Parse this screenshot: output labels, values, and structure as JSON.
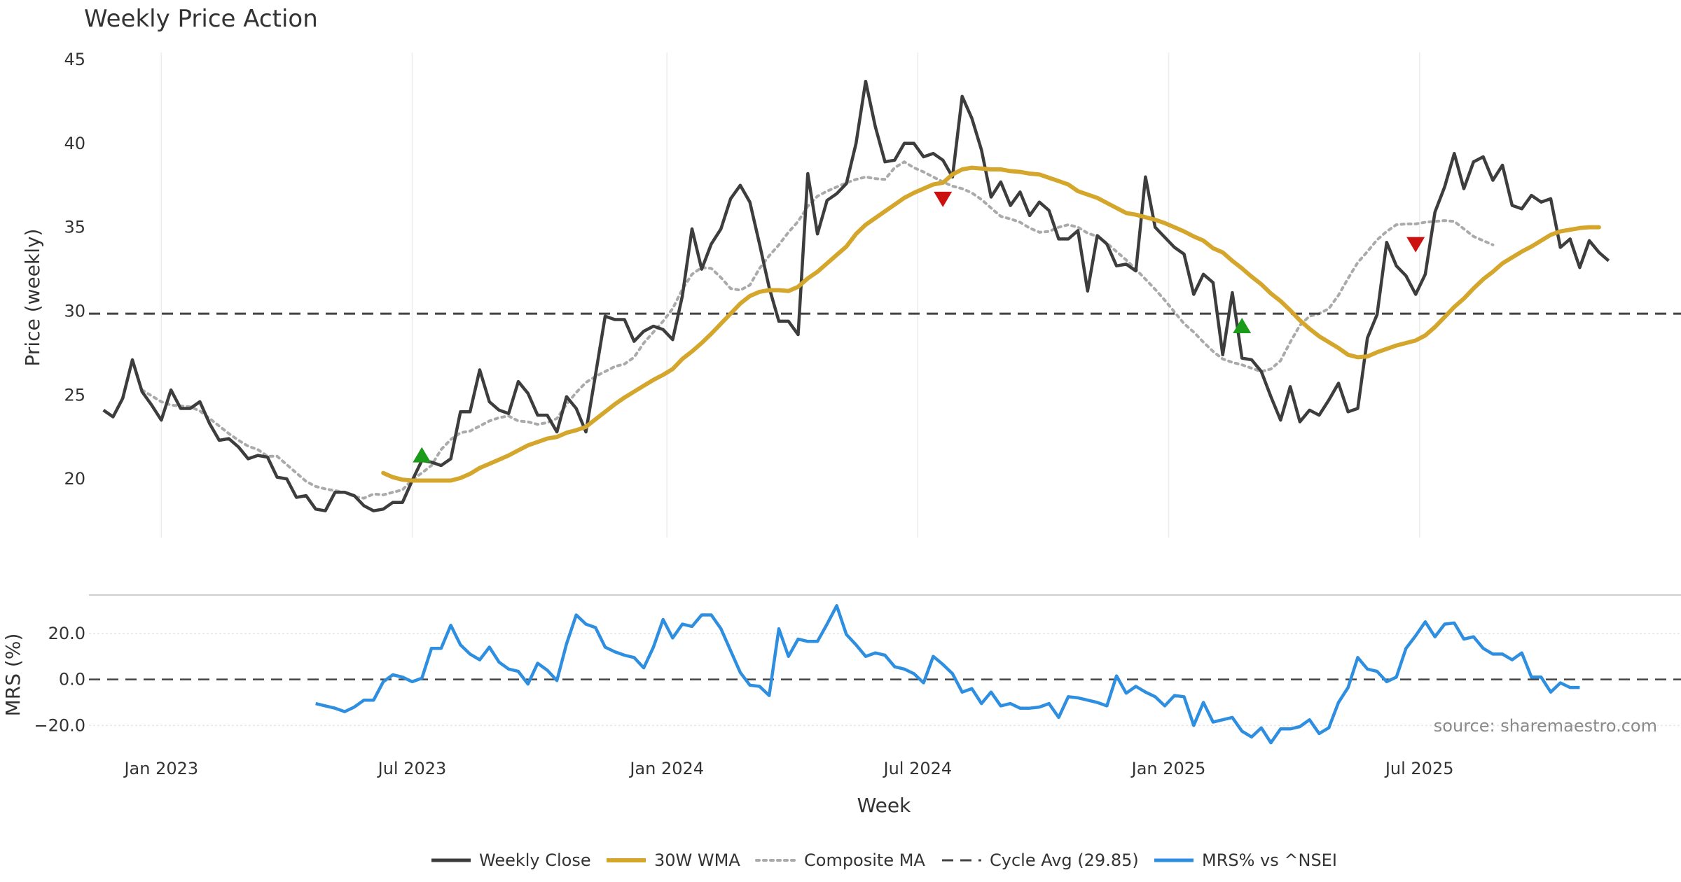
{
  "chart_data": {
    "type": "line",
    "title": "Weekly Price Action",
    "xlabel": "Week",
    "source_label": "source: sharemaestro.com",
    "x_ticks": [
      "Jan 2023",
      "Jul 2023",
      "Jan 2024",
      "Jul 2024",
      "Jan 2025",
      "Jul 2025"
    ],
    "x_tick_weeks": [
      6.0,
      32.0,
      58.4,
      84.4,
      110.4,
      136.4
    ],
    "x_range": [
      -1.5,
      163.5
    ],
    "price_panel": {
      "ylabel": "Price (weekly)",
      "ylim": [
        16.5,
        45
      ],
      "y_ticks": [
        20,
        25,
        30,
        35,
        40,
        45
      ],
      "cycle_avg": 29.85
    },
    "mrs_panel": {
      "ylabel": "MRS (%)",
      "ylim": [
        -29,
        33
      ],
      "y_ticks": [
        -20,
        0,
        20
      ],
      "y_tick_labels": [
        "−20.0",
        "0.0",
        "20.0"
      ]
    },
    "series": [
      {
        "name": "Weekly Close",
        "color": "#3d3d3d",
        "values": [
          24.1,
          23.7,
          24.8,
          27.1,
          25.2,
          24.4,
          23.5,
          25.3,
          24.2,
          24.2,
          24.6,
          23.3,
          22.3,
          22.4,
          21.9,
          21.2,
          21.4,
          21.3,
          20.1,
          20.0,
          18.9,
          19.0,
          18.2,
          18.1,
          19.2,
          19.2,
          19.0,
          18.4,
          18.1,
          18.2,
          18.6,
          18.6,
          19.9,
          21.1,
          21.0,
          20.8,
          21.2,
          24.0,
          24.0,
          26.5,
          24.6,
          24.1,
          23.9,
          25.8,
          25.1,
          23.8,
          23.8,
          22.8,
          24.9,
          24.2,
          22.8,
          26.2,
          29.7,
          29.5,
          29.5,
          28.2,
          28.8,
          29.1,
          28.9,
          28.3,
          30.9,
          34.9,
          32.5,
          34.0,
          34.9,
          36.7,
          37.5,
          36.5,
          34.0,
          31.4,
          29.4,
          29.4,
          28.6,
          38.2,
          34.6,
          36.6,
          37.0,
          37.6,
          40.0,
          43.7,
          41.0,
          38.9,
          39.0,
          40.0,
          40.0,
          39.2,
          39.4,
          39.0,
          38.0,
          42.8,
          41.5,
          39.6,
          36.8,
          37.7,
          36.3,
          37.1,
          35.7,
          36.5,
          36.0,
          34.3,
          34.3,
          34.8,
          31.2,
          34.5,
          34.0,
          32.7,
          32.8,
          32.4,
          38.0,
          35.0,
          34.4,
          33.8,
          33.4,
          31.0,
          32.2,
          31.7,
          27.4,
          31.1,
          27.2,
          27.1,
          26.4,
          24.9,
          23.5,
          25.5,
          23.4,
          24.1,
          23.8,
          24.7,
          25.7,
          24.0,
          24.2,
          28.4,
          29.8,
          34.1,
          32.7,
          32.1,
          31.0,
          32.2,
          35.9,
          37.4,
          39.4,
          37.3,
          38.9,
          39.2,
          37.8,
          38.7,
          36.3,
          36.1,
          36.9,
          36.5,
          36.7,
          33.8,
          34.3,
          32.6,
          34.2,
          33.5,
          33.0
        ]
      },
      {
        "name": "30W WMA",
        "color": "#d4a72c",
        "start_week": 29,
        "values": [
          20.35,
          20.1,
          19.95,
          19.9,
          19.9,
          19.9,
          19.9,
          19.9,
          20.05,
          20.3,
          20.65,
          20.9,
          21.15,
          21.4,
          21.7,
          22.0,
          22.2,
          22.4,
          22.5,
          22.75,
          22.9,
          23.1,
          23.55,
          24.0,
          24.45,
          24.85,
          25.2,
          25.55,
          25.9,
          26.2,
          26.55,
          27.15,
          27.6,
          28.1,
          28.65,
          29.25,
          29.85,
          30.45,
          30.9,
          31.15,
          31.25,
          31.25,
          31.2,
          31.45,
          31.95,
          32.35,
          32.85,
          33.35,
          33.85,
          34.6,
          35.15,
          35.55,
          35.95,
          36.35,
          36.75,
          37.05,
          37.3,
          37.55,
          37.65,
          38.15,
          38.45,
          38.55,
          38.5,
          38.45,
          38.45,
          38.35,
          38.3,
          38.2,
          38.15,
          37.95,
          37.75,
          37.55,
          37.15,
          36.95,
          36.75,
          36.45,
          36.15,
          35.85,
          35.75,
          35.6,
          35.45,
          35.25,
          35.0,
          34.75,
          34.45,
          34.2,
          33.75,
          33.5,
          33.0,
          32.55,
          32.05,
          31.6,
          31.05,
          30.6,
          30.05,
          29.45,
          28.95,
          28.5,
          28.15,
          27.8,
          27.4,
          27.25,
          27.3,
          27.55,
          27.75,
          27.95,
          28.1,
          28.25,
          28.55,
          29.05,
          29.65,
          30.25,
          30.75,
          31.35,
          31.9,
          32.35,
          32.85,
          33.2,
          33.55,
          33.85,
          34.2,
          34.55,
          34.75,
          34.85,
          34.95,
          35.0,
          35.0
        ]
      },
      {
        "name": "Composite MA",
        "color": "#aaaaaa",
        "start_week": 4,
        "values": [
          25.3,
          24.95,
          24.6,
          24.4,
          24.35,
          24.3,
          24.05,
          23.6,
          23.15,
          22.7,
          22.3,
          21.95,
          21.75,
          21.35,
          21.35,
          20.85,
          20.35,
          19.85,
          19.55,
          19.4,
          19.3,
          19.2,
          18.95,
          18.85,
          19.1,
          19.05,
          19.2,
          19.35,
          19.95,
          20.35,
          20.8,
          21.75,
          22.35,
          22.75,
          22.85,
          23.15,
          23.45,
          23.65,
          23.75,
          23.45,
          23.4,
          23.25,
          23.35,
          23.6,
          24.45,
          25.15,
          25.75,
          26.1,
          26.4,
          26.7,
          26.85,
          27.25,
          28.1,
          28.75,
          29.4,
          30.15,
          31.3,
          32.2,
          32.6,
          32.55,
          32.0,
          31.35,
          31.25,
          31.55,
          32.55,
          33.3,
          33.95,
          34.7,
          35.35,
          36.25,
          36.85,
          37.15,
          37.4,
          37.65,
          37.85,
          38.0,
          37.9,
          37.85,
          38.55,
          38.9,
          38.55,
          38.3,
          38.0,
          37.7,
          37.45,
          37.3,
          37.05,
          36.65,
          36.15,
          35.65,
          35.5,
          35.3,
          34.95,
          34.7,
          34.75,
          35.0,
          35.15,
          35.0,
          34.65,
          34.45,
          34.05,
          33.55,
          33.05,
          32.5,
          31.9,
          31.3,
          30.65,
          29.95,
          29.25,
          28.75,
          28.15,
          27.6,
          27.15,
          26.95,
          26.8,
          26.6,
          26.4,
          26.55,
          27.05,
          28.15,
          29.15,
          29.7,
          29.85,
          30.15,
          30.95,
          31.95,
          32.9,
          33.55,
          34.25,
          34.75,
          35.15,
          35.2,
          35.2,
          35.3,
          35.35,
          35.4,
          35.35,
          34.9,
          34.45,
          34.2,
          33.95
        ]
      },
      {
        "name": "Cycle Avg (29.85)",
        "color": "#444444",
        "value": 29.85
      },
      {
        "name": "MRS% vs ^NSEI",
        "color": "#2e8ee0",
        "start_week": 22,
        "values": [
          -10.5,
          -11.5,
          -12.5,
          -14.0,
          -12.0,
          -9.0,
          -9.0,
          -1.0,
          2.0,
          1.0,
          -1.0,
          0.5,
          13.5,
          13.5,
          23.5,
          15.0,
          11.0,
          8.5,
          14.0,
          7.5,
          4.5,
          3.5,
          -2.0,
          7.0,
          4.0,
          -0.5,
          15.5,
          28.0,
          24.0,
          22.5,
          14.0,
          12.0,
          10.5,
          9.5,
          5.0,
          14.0,
          26.0,
          18.0,
          24.0,
          23.0,
          28.0,
          28.0,
          22.0,
          12.5,
          3.0,
          -2.5,
          -3.0,
          -7.0,
          22.0,
          10.0,
          17.5,
          16.5,
          16.5,
          24.0,
          32.0,
          19.5,
          15.0,
          10.0,
          11.5,
          10.5,
          5.5,
          4.5,
          2.5,
          -1.5,
          10.0,
          6.5,
          2.5,
          -5.5,
          -4.0,
          -10.5,
          -5.5,
          -11.5,
          -10.5,
          -12.5,
          -12.5,
          -12.0,
          -10.5,
          -16.5,
          -7.5,
          -8.0,
          -9.0,
          -10.0,
          -11.5,
          1.5,
          -6.0,
          -3.0,
          -5.5,
          -7.5,
          -11.5,
          -7.0,
          -7.5,
          -20.0,
          -10.0,
          -18.5,
          -17.5,
          -16.5,
          -22.5,
          -25.0,
          -21.0,
          -27.5,
          -21.5,
          -21.5,
          -20.5,
          -17.5,
          -23.5,
          -21.0,
          -10.0,
          -3.5,
          9.5,
          4.5,
          3.5,
          -1.0,
          1.0,
          13.5,
          19.0,
          25.0,
          18.5,
          24.0,
          24.5,
          17.5,
          18.5,
          13.5,
          11.0,
          11.0,
          8.5,
          11.5,
          1.0,
          1.0,
          -5.5,
          -1.5,
          -3.5,
          -3.5
        ]
      }
    ],
    "buy_signals": [
      {
        "week": 33,
        "price": 21.4
      },
      {
        "week": 118,
        "price": 29.1
      }
    ],
    "sell_signals": [
      {
        "week": 87,
        "price": 36.7
      },
      {
        "week": 136,
        "price": 34.0
      }
    ]
  },
  "legend": {
    "items": [
      {
        "label": "Weekly Close"
      },
      {
        "label": "30W WMA"
      },
      {
        "label": "Composite MA"
      },
      {
        "label": "Cycle Avg (29.85)"
      },
      {
        "label": "MRS% vs ^NSEI"
      }
    ]
  }
}
